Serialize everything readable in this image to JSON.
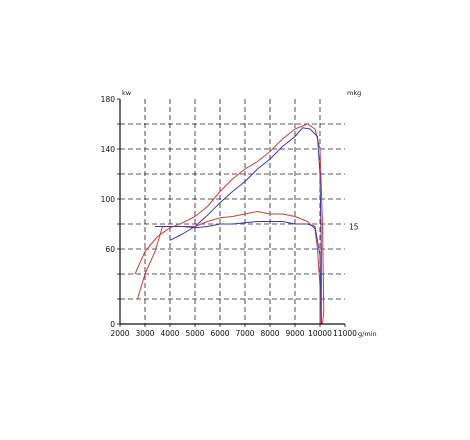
{
  "chart_data": {
    "type": "line",
    "title": "",
    "xlabel": "",
    "ylabel": "",
    "x_unit": "g/min",
    "y_unit_left": "kw",
    "y_unit_right": "mkg",
    "right_annotation": "15",
    "xlim": [
      2000,
      11000
    ],
    "ylim": [
      0,
      180
    ],
    "x_tick_labels": [
      "2000",
      "3000",
      "4000",
      "5000",
      "6000",
      "7000",
      "8000",
      "9000",
      "10000",
      "11000"
    ],
    "y_tick_labels": [
      {
        "value": 180,
        "label": "180"
      },
      {
        "value": 140,
        "label": "140"
      },
      {
        "value": 100,
        "label": "100"
      },
      {
        "value": 60,
        "label": "60"
      },
      {
        "value": 0,
        "label": "0"
      }
    ],
    "grid": true,
    "grid_style": "dashed",
    "colors": {
      "red": "#d63a3a",
      "blue": "#3a3aa8",
      "grid": "#222222"
    },
    "series": [
      {
        "color": "#d63a3a",
        "points": [
          [
            2600,
            40
          ],
          [
            3000,
            58
          ],
          [
            3500,
            70
          ],
          [
            4000,
            77
          ],
          [
            4500,
            81
          ],
          [
            5000,
            86
          ],
          [
            5500,
            94
          ],
          [
            6000,
            106
          ],
          [
            6500,
            116
          ],
          [
            7000,
            124
          ],
          [
            7500,
            130
          ],
          [
            8000,
            138
          ],
          [
            8500,
            148
          ],
          [
            9000,
            156
          ],
          [
            9500,
            160
          ],
          [
            9800,
            156
          ],
          [
            10000,
            140
          ],
          [
            10100,
            80
          ],
          [
            10150,
            10
          ],
          [
            10100,
            0
          ]
        ]
      },
      {
        "color": "#3a3aa8",
        "points": [
          [
            4000,
            67
          ],
          [
            4500,
            72
          ],
          [
            5000,
            78
          ],
          [
            5500,
            87
          ],
          [
            6000,
            97
          ],
          [
            6500,
            106
          ],
          [
            7000,
            114
          ],
          [
            7500,
            124
          ],
          [
            8000,
            132
          ],
          [
            8500,
            142
          ],
          [
            9000,
            150
          ],
          [
            9300,
            157
          ],
          [
            9600,
            156
          ],
          [
            9900,
            150
          ],
          [
            10000,
            120
          ],
          [
            10050,
            60
          ],
          [
            10050,
            0
          ]
        ]
      },
      {
        "color": "#d63a3a",
        "points": [
          [
            2700,
            20
          ],
          [
            3000,
            40
          ],
          [
            3400,
            58
          ],
          [
            3700,
            78
          ],
          [
            4500,
            78
          ],
          [
            5000,
            78
          ],
          [
            5500,
            82
          ],
          [
            6000,
            85
          ],
          [
            6500,
            86
          ],
          [
            7000,
            88
          ],
          [
            7500,
            90
          ],
          [
            8000,
            88
          ],
          [
            8500,
            88
          ],
          [
            9000,
            86
          ],
          [
            9500,
            82
          ],
          [
            9800,
            76
          ],
          [
            9900,
            60
          ],
          [
            10000,
            30
          ],
          [
            10000,
            0
          ]
        ]
      },
      {
        "color": "#3a3aa8",
        "points": [
          [
            3400,
            78
          ],
          [
            4000,
            78
          ],
          [
            4500,
            78
          ],
          [
            5000,
            77
          ],
          [
            5500,
            78
          ],
          [
            6000,
            80
          ],
          [
            6500,
            80
          ],
          [
            7000,
            81
          ],
          [
            7500,
            82
          ],
          [
            8000,
            82
          ],
          [
            8500,
            82
          ],
          [
            9000,
            80
          ],
          [
            9500,
            80
          ],
          [
            9800,
            78
          ],
          [
            10000,
            55
          ],
          [
            10050,
            0
          ]
        ]
      }
    ]
  }
}
